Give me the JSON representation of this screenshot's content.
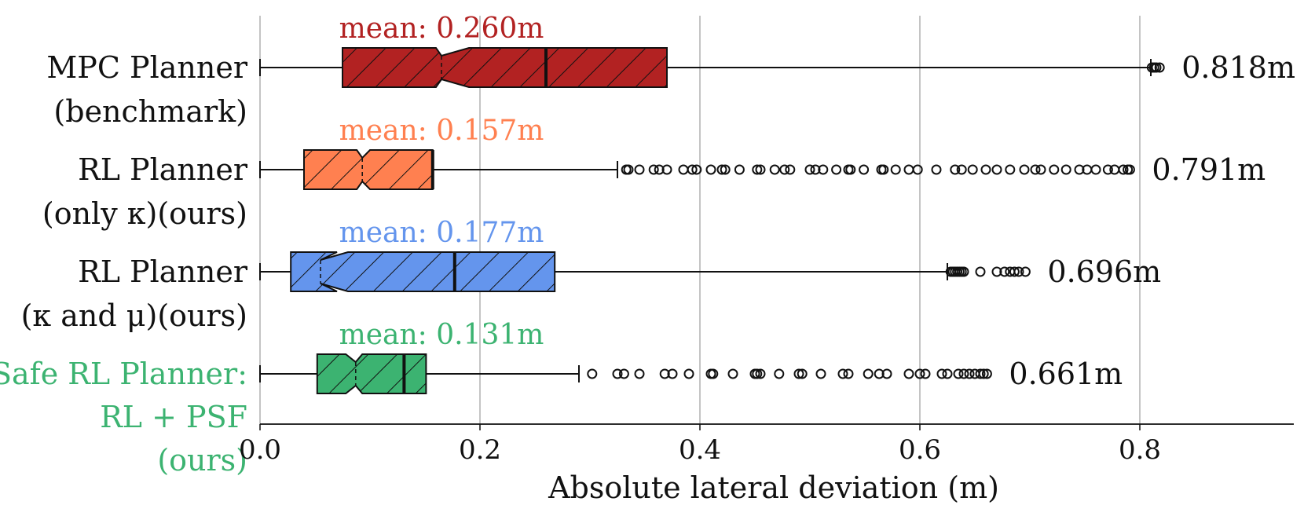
{
  "chart_data": {
    "type": "boxplot",
    "orientation": "horizontal",
    "title": "",
    "xlabel": "Absolute lateral deviation (m)",
    "ylabel": "",
    "xlim": [
      0,
      0.94
    ],
    "xticks": [
      0.0,
      0.2,
      0.4,
      0.6,
      0.8
    ],
    "xtick_labels": [
      "0.0",
      "0.2",
      "0.4",
      "0.6",
      "0.8"
    ],
    "grid": "vertical lines at x ticks",
    "series": [
      {
        "label_lines": [
          "MPC Planner",
          "(benchmark)"
        ],
        "color": "#b22222",
        "label_color": "#111111",
        "whisker_low": 0.0,
        "q1": 0.075,
        "median": 0.26,
        "q3": 0.37,
        "notch_low": 0.16,
        "notch_high": 0.19,
        "notch_min": 0.165,
        "whisker_high": 0.81,
        "mean_label": "mean: 0.260m",
        "max_label": "0.818m",
        "outliers": [
          0.811,
          0.813,
          0.815,
          0.818
        ]
      },
      {
        "label_lines": [
          "RL Planner",
          "(only κ)(ours)"
        ],
        "color": "#ff8050",
        "label_color": "#111111",
        "whisker_low": 0.0,
        "q1": 0.04,
        "median": 0.157,
        "q3": 0.157,
        "notch_low": 0.088,
        "notch_high": 0.1,
        "notch_min": 0.093,
        "whisker_high": 0.325,
        "mean_label": "mean: 0.157m",
        "max_label": "0.791m",
        "outliers": [
          0.333,
          0.335,
          0.345,
          0.358,
          0.363,
          0.37,
          0.385,
          0.393,
          0.397,
          0.41,
          0.42,
          0.423,
          0.436,
          0.452,
          0.455,
          0.468,
          0.477,
          0.482,
          0.5,
          0.505,
          0.512,
          0.524,
          0.535,
          0.537,
          0.549,
          0.565,
          0.567,
          0.578,
          0.59,
          0.598,
          0.615,
          0.632,
          0.638,
          0.648,
          0.66,
          0.67,
          0.682,
          0.695,
          0.705,
          0.71,
          0.722,
          0.733,
          0.745,
          0.752,
          0.76,
          0.771,
          0.777,
          0.785,
          0.789,
          0.791
        ]
      },
      {
        "label_lines": [
          "RL Planner",
          "(κ and μ)(ours)"
        ],
        "color": "#6495ed",
        "label_color": "#111111",
        "whisker_low": 0.0,
        "q1": 0.028,
        "median": 0.177,
        "q3": 0.268,
        "notch_low": 0.07,
        "notch_high": 0.08,
        "notch_min": 0.055,
        "whisker_high": 0.625,
        "mean_label": "mean: 0.177m",
        "max_label": "0.696m",
        "outliers": [
          0.628,
          0.63,
          0.632,
          0.634,
          0.636,
          0.638,
          0.64,
          0.655,
          0.67,
          0.677,
          0.682,
          0.686,
          0.69,
          0.696
        ]
      },
      {
        "label_lines": [
          "Safe RL Planner:",
          "RL + PSF",
          "(ours)"
        ],
        "color": "#3cb371",
        "label_color": "#3cb371",
        "whisker_low": 0.0,
        "q1": 0.052,
        "median": 0.131,
        "q3": 0.151,
        "notch_low": 0.078,
        "notch_high": 0.093,
        "notch_min": 0.087,
        "whisker_high": 0.29,
        "mean_label": "mean: 0.131m",
        "max_label": "0.661m",
        "outliers": [
          0.302,
          0.325,
          0.331,
          0.345,
          0.368,
          0.375,
          0.39,
          0.41,
          0.412,
          0.43,
          0.45,
          0.452,
          0.455,
          0.472,
          0.49,
          0.493,
          0.51,
          0.53,
          0.535,
          0.553,
          0.563,
          0.57,
          0.59,
          0.6,
          0.605,
          0.62,
          0.625,
          0.635,
          0.64,
          0.645,
          0.65,
          0.655,
          0.658,
          0.661
        ]
      }
    ]
  }
}
